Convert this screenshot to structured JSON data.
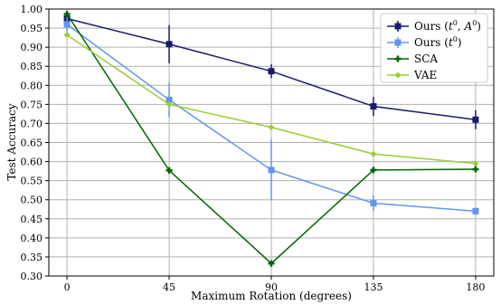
{
  "chart_data": {
    "type": "line",
    "title": "",
    "xlabel": "Maximum Rotation (degrees)",
    "ylabel": "Test Accuracy",
    "x": [
      0,
      45,
      90,
      135,
      180
    ],
    "x_tick_labels": [
      "0",
      "45",
      "90",
      "135",
      "180"
    ],
    "xlim": [
      -8,
      188
    ],
    "ylim": [
      0.3,
      1.0
    ],
    "y_tick_labels": [
      "0.30",
      "0.35",
      "0.40",
      "0.45",
      "0.50",
      "0.55",
      "0.60",
      "0.65",
      "0.70",
      "0.75",
      "0.80",
      "0.85",
      "0.90",
      "0.95",
      "1.00"
    ],
    "grid": true,
    "legend_position": "top-right",
    "series": [
      {
        "name_parts": [
          "Ours (",
          "t",
          "0",
          ", ",
          "A",
          "0",
          ")"
        ],
        "color": "#191970",
        "marker": "square",
        "values": [
          0.975,
          0.908,
          0.837,
          0.745,
          0.71
        ],
        "errors": [
          0.01,
          0.05,
          0.018,
          0.025,
          0.025
        ]
      },
      {
        "name_parts": [
          "Ours (",
          "t",
          "0",
          ")"
        ],
        "color": "#6495ED",
        "marker": "square",
        "values": [
          0.96,
          0.762,
          0.578,
          0.491,
          0.47
        ],
        "errors": [
          0.02,
          0.045,
          0.08,
          0.02,
          0.01
        ]
      },
      {
        "name_parts": [
          "SCA"
        ],
        "color": "#006400",
        "marker": "plus",
        "values": [
          0.987,
          0.577,
          0.333,
          0.578,
          0.58
        ],
        "errors": [
          0,
          0,
          0,
          0,
          0
        ]
      },
      {
        "name_parts": [
          "VAE"
        ],
        "color": "#9ACD32",
        "marker": "diamond",
        "values": [
          0.932,
          0.75,
          0.69,
          0.62,
          0.595
        ],
        "errors": [
          0,
          0,
          0,
          0,
          0
        ]
      }
    ]
  }
}
